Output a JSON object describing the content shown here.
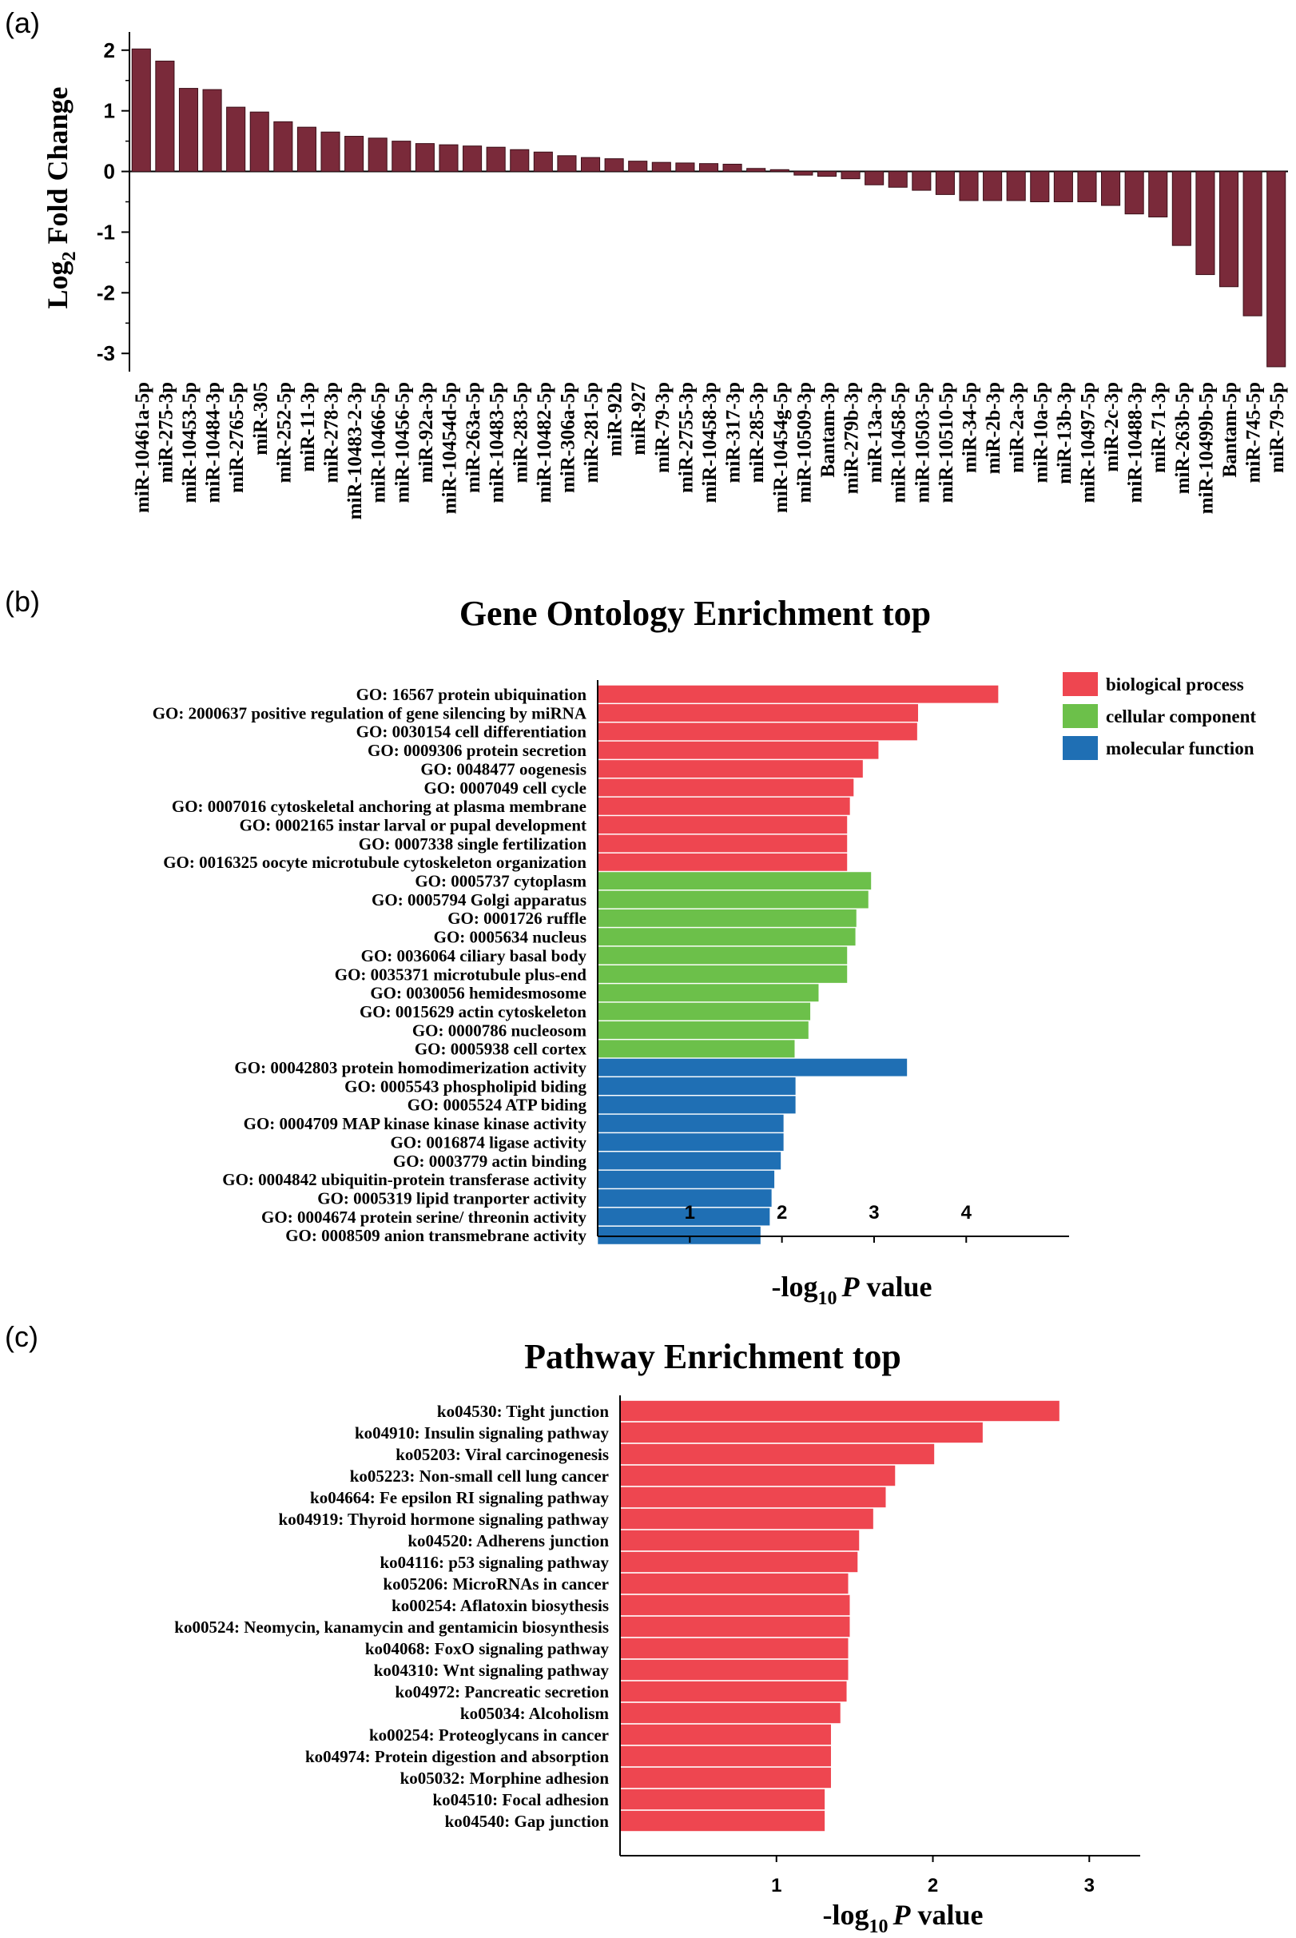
{
  "panels": {
    "a": "(a)",
    "b": "(b)",
    "c": "(c)"
  },
  "chart_data": [
    {
      "type": "bar",
      "title": "",
      "xlabel": "",
      "ylabel": "Log",
      "ylabel_sub": "2",
      "ylabel_tail": " Fold Change",
      "ylim": [
        -3.3,
        2.3
      ],
      "yticks": [
        2,
        1,
        0,
        -1,
        -2,
        -3
      ],
      "color": "#7a2a3a",
      "categories": [
        "miR-10461a-5p",
        "miR-275-3p",
        "miR-10453-5p",
        "miR-10484-3p",
        "miR-2765-5p",
        "miR-305",
        "miR-252-5p",
        "miR-11-3p",
        "miR-278-3p",
        "miR-10483-2-3p",
        "miR-10466-5p",
        "miR-10456-5p",
        "miR-92a-3p",
        "miR-10454d-5p",
        "miR-263a-5p",
        "miR-10483-5p",
        "miR-283-5p",
        "miR-10482-5p",
        "miR-306a-5p",
        "miR-281-5p",
        "miR-92b",
        "miR-927",
        "miR-79-3p",
        "miR-2755-3p",
        "miR-10458-3p",
        "miR-317-3p",
        "miR-285-3p",
        "miR-10454g-5p",
        "miR-10509-3p",
        "Bantam-3p",
        "miR-279b-3p",
        "miR-13a-3p",
        "miR-10458-5p",
        "miR-10503-5p",
        "miR-10510-5p",
        "miR-34-5p",
        "miR-2b-3p",
        "miR-2a-3p",
        "miR-10a-5p",
        "miR-13b-3p",
        "miR-10497-5p",
        "miR-2c-3p",
        "miR-10488-3p",
        "miR-71-3p",
        "miR-263b-5p",
        "miR-10499b-5p",
        "Bantam-5p",
        "miR-745-5p",
        "miR-79-5p"
      ],
      "values": [
        2.02,
        1.82,
        1.37,
        1.35,
        1.06,
        0.98,
        0.82,
        0.73,
        0.65,
        0.58,
        0.55,
        0.5,
        0.46,
        0.44,
        0.42,
        0.4,
        0.36,
        0.32,
        0.26,
        0.23,
        0.21,
        0.17,
        0.15,
        0.14,
        0.13,
        0.12,
        0.05,
        0.03,
        -0.06,
        -0.08,
        -0.12,
        -0.22,
        -0.26,
        -0.31,
        -0.38,
        -0.48,
        -0.48,
        -0.48,
        -0.5,
        -0.5,
        -0.5,
        -0.56,
        -0.7,
        -0.75,
        -1.22,
        -1.7,
        -1.9,
        -2.38,
        -3.22
      ]
    },
    {
      "type": "bar",
      "orientation": "horizontal",
      "title": "Gene Ontology Enrichment top",
      "xlabel": "-log",
      "xlabel_sub": "10",
      "xlabel_italic": "P",
      "xlabel_tail": " value",
      "xlim": [
        0,
        4.7
      ],
      "xticks": [
        1,
        2,
        3,
        4
      ],
      "legend": {
        "placement": "top-right",
        "entries": [
          {
            "name": "biological process",
            "color": "#ee4650"
          },
          {
            "name": "cellular component",
            "color": "#6cc04a"
          },
          {
            "name": "molecular function",
            "color": "#1f6fb4"
          }
        ]
      },
      "categories": [
        "GO: 16567 protein ubiquination",
        "GO: 2000637 positive regulation of gene silencing by miRNA",
        "GO: 0030154 cell differentiation",
        "GO: 0009306 protein secretion",
        "GO: 0048477 oogenesis",
        "GO: 0007049 cell cycle",
        "GO: 0007016 cytoskeletal anchoring at plasma membrane",
        "GO: 0002165 instar larval or pupal development",
        "GO: 0007338 single fertilization",
        "GO: 0016325 oocyte microtubule cytoskeleton organization",
        "GO: 0005737 cytoplasm",
        "GO: 0005794 Golgi apparatus",
        "GO: 0001726 ruffle",
        "GO: 0005634 nucleus",
        "GO: 0036064 ciliary basal body",
        "GO: 0035371 microtubule plus-end",
        "GO: 0030056 hemidesmosome",
        "GO: 0015629 actin cytoskeleton",
        "GO: 0000786 nucleosom",
        "GO: 0005938 cell cortex",
        "GO: 00042803 protein homodimerization activity",
        "GO: 0005543 phospholipid biding",
        "GO: 0005524 ATP biding",
        "GO: 0004709 MAP kinase kinase kinase activity",
        "GO: 0016874 ligase activity",
        "GO: 0003779 actin binding",
        "GO: 0004842 ubiquitin-protein transferase activity",
        "GO: 0005319 lipid tranporter activity",
        "GO: 0004674 protein serine/ threonin activity",
        "GO: 0008509 anion transmebrane activity"
      ],
      "values": [
        4.35,
        3.48,
        3.47,
        3.05,
        2.88,
        2.78,
        2.74,
        2.71,
        2.71,
        2.71,
        2.97,
        2.94,
        2.81,
        2.8,
        2.71,
        2.71,
        2.4,
        2.31,
        2.29,
        2.14,
        3.36,
        2.15,
        2.15,
        2.02,
        2.02,
        1.99,
        1.92,
        1.89,
        1.87,
        1.77
      ],
      "groups": [
        "bp",
        "bp",
        "bp",
        "bp",
        "bp",
        "bp",
        "bp",
        "bp",
        "bp",
        "bp",
        "cc",
        "cc",
        "cc",
        "cc",
        "cc",
        "cc",
        "cc",
        "cc",
        "cc",
        "cc",
        "mf",
        "mf",
        "mf",
        "mf",
        "mf",
        "mf",
        "mf",
        "mf",
        "mf",
        "mf"
      ]
    },
    {
      "type": "bar",
      "orientation": "horizontal",
      "title": "Pathway Enrichment top",
      "xlabel": "-log",
      "xlabel_sub": "10",
      "xlabel_italic": "P",
      "xlabel_tail": " value",
      "xlim": [
        0,
        3.07
      ],
      "xticks": [
        1,
        2,
        3
      ],
      "color": "#ee4650",
      "categories": [
        "ko04530: Tight junction",
        "ko04910: Insulin signaling pathway",
        "ko05203: Viral carcinogenesis",
        "ko05223: Non-small cell lung cancer",
        "ko04664: Fe epsilon RI signaling pathway",
        "ko04919: Thyroid hormone signaling pathway",
        "ko04520: Adherens junction",
        "ko04116: p53 signaling pathway",
        "ko05206: MicroRNAs in cancer",
        "ko00254: Aflatoxin biosythesis",
        "ko00524: Neomycin, kanamycin and gentamicin biosynthesis",
        "ko04068: FoxO signaling pathway",
        "ko04310: Wnt signaling pathway",
        "ko04972: Pancreatic secretion",
        "ko05034: Alcoholism",
        "ko00254: Proteoglycans in cancer",
        "ko04974: Protein digestion and absorption",
        "ko05032: Morphine adhesion",
        "ko04510: Focal adhesion",
        "ko04540: Gap junction"
      ],
      "values": [
        2.81,
        2.32,
        2.01,
        1.76,
        1.7,
        1.62,
        1.53,
        1.52,
        1.46,
        1.47,
        1.47,
        1.46,
        1.46,
        1.45,
        1.41,
        1.35,
        1.35,
        1.35,
        1.31,
        1.31
      ]
    }
  ]
}
